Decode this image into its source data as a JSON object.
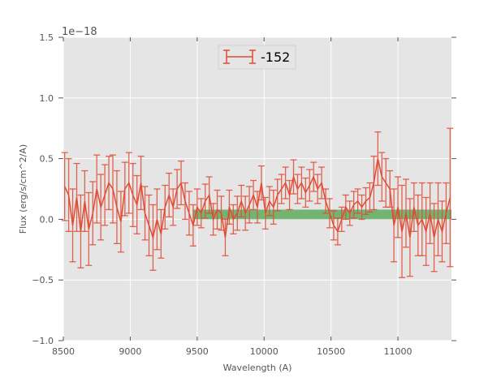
{
  "chart_data": {
    "type": "line",
    "title": "",
    "xlabel": "Wavelength (A)",
    "ylabel": "Flux (erg/s/cm^2/A)",
    "offset_text": "1e−18",
    "xlim": [
      8500,
      11400
    ],
    "ylim": [
      -1.0,
      1.5
    ],
    "xticks": [
      8500,
      9000,
      9500,
      10000,
      10500,
      11000
    ],
    "xtick_labels": [
      "8500",
      "9000",
      "9500",
      "10000",
      "10500",
      "11000"
    ],
    "yticks": [
      -1.0,
      -0.5,
      0.0,
      0.5,
      1.0,
      1.5
    ],
    "ytick_labels": [
      "−1.0",
      "−0.5",
      "0.0",
      "0.5",
      "1.0",
      "1.5"
    ],
    "grid": true,
    "legend": {
      "placement": "top-center",
      "entries": [
        "-152"
      ]
    },
    "colors": {
      "series": "#e24a33",
      "band": "#4ca34c",
      "background": "#e5e5e5",
      "grid": "#ffffff",
      "text": "#555555"
    },
    "band": {
      "x": [
        9470,
        11400
      ],
      "y": [
        0.0,
        0.08
      ]
    },
    "series": [
      {
        "name": "-152",
        "x_start": 8510,
        "x_step": 30,
        "values": [
          0.27,
          0.2,
          -0.05,
          0.18,
          -0.1,
          0.15,
          -0.08,
          0.05,
          0.25,
          0.1,
          0.2,
          0.3,
          0.25,
          0.1,
          -0.02,
          0.25,
          0.3,
          0.2,
          0.12,
          0.3,
          0.05,
          -0.05,
          -0.15,
          0.0,
          -0.12,
          0.1,
          0.2,
          0.1,
          0.25,
          0.3,
          0.15,
          0.05,
          -0.05,
          0.1,
          0.05,
          0.15,
          0.2,
          0.0,
          0.08,
          0.05,
          -0.15,
          0.1,
          0.0,
          0.05,
          0.15,
          0.05,
          0.12,
          0.2,
          0.1,
          0.3,
          0.05,
          0.15,
          0.1,
          0.2,
          0.25,
          0.3,
          0.2,
          0.35,
          0.25,
          0.3,
          0.22,
          0.28,
          0.35,
          0.25,
          0.3,
          0.15,
          0.05,
          -0.05,
          -0.1,
          0.0,
          0.1,
          0.05,
          0.12,
          0.15,
          0.1,
          0.15,
          0.18,
          0.3,
          0.5,
          0.35,
          0.3,
          0.25,
          -0.05,
          0.1,
          -0.1,
          0.05,
          -0.15,
          0.1,
          -0.05,
          0.0,
          -0.1,
          0.05,
          -0.15,
          0.0,
          -0.1,
          0.05,
          0.18
        ],
        "errors": [
          0.28,
          0.3,
          0.3,
          0.28,
          0.3,
          0.25,
          0.3,
          0.26,
          0.28,
          0.27,
          0.25,
          0.22,
          0.28,
          0.3,
          0.25,
          0.22,
          0.25,
          0.26,
          0.24,
          0.22,
          0.22,
          0.25,
          0.27,
          0.25,
          0.2,
          0.18,
          0.18,
          0.15,
          0.16,
          0.18,
          0.15,
          0.18,
          0.17,
          0.15,
          0.12,
          0.14,
          0.15,
          0.13,
          0.16,
          0.14,
          0.15,
          0.14,
          0.12,
          0.14,
          0.13,
          0.14,
          0.15,
          0.12,
          0.13,
          0.14,
          0.13,
          0.12,
          0.14,
          0.13,
          0.12,
          0.13,
          0.12,
          0.14,
          0.12,
          0.13,
          0.12,
          0.13,
          0.12,
          0.12,
          0.13,
          0.1,
          0.12,
          0.12,
          0.11,
          0.1,
          0.1,
          0.1,
          0.11,
          0.1,
          0.1,
          0.11,
          0.12,
          0.22,
          0.22,
          0.2,
          0.2,
          0.15,
          0.3,
          0.25,
          0.38,
          0.28,
          0.32,
          0.2,
          0.25,
          0.3,
          0.28,
          0.25,
          0.28,
          0.3,
          0.25,
          0.25,
          0.57
        ]
      }
    ]
  }
}
